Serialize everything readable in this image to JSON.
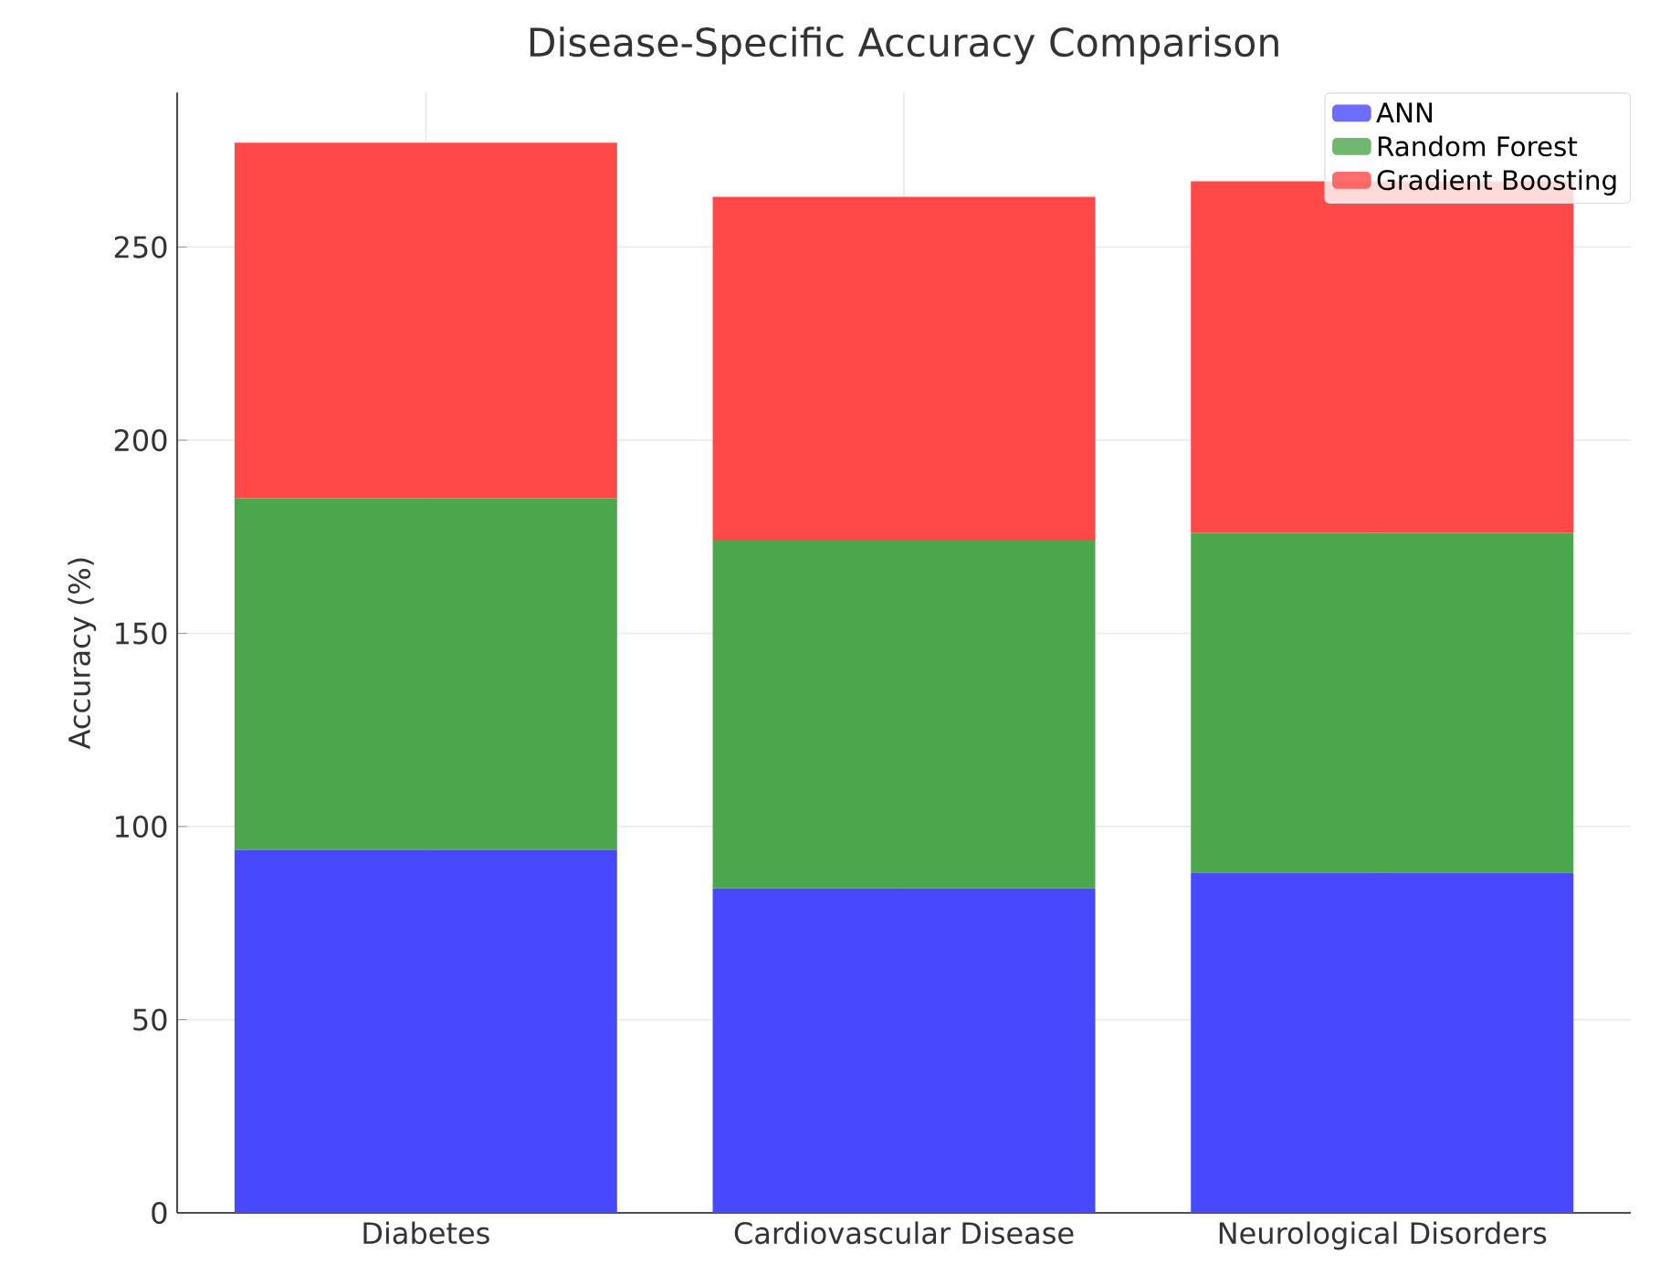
{
  "chart_data": {
    "type": "bar",
    "stacked": true,
    "title": "Disease-Specific Accuracy Comparison",
    "ylabel": "Accuracy (%)",
    "categories": [
      "Diabetes",
      "Cardiovascular Disease",
      "Neurological Disorders"
    ],
    "series": [
      {
        "name": "ANN",
        "color": "#4848ff",
        "values": [
          94,
          84,
          88
        ]
      },
      {
        "name": "Random Forest",
        "color": "#4ca64c",
        "values": [
          91,
          90,
          88
        ]
      },
      {
        "name": "Gradient Boosting",
        "color": "#ff4848",
        "values": [
          92,
          89,
          91
        ]
      }
    ],
    "ylim": [
      0,
      290
    ],
    "yticks": [
      0,
      50,
      100,
      150,
      200,
      250
    ],
    "grid": true,
    "legend": "top right"
  }
}
